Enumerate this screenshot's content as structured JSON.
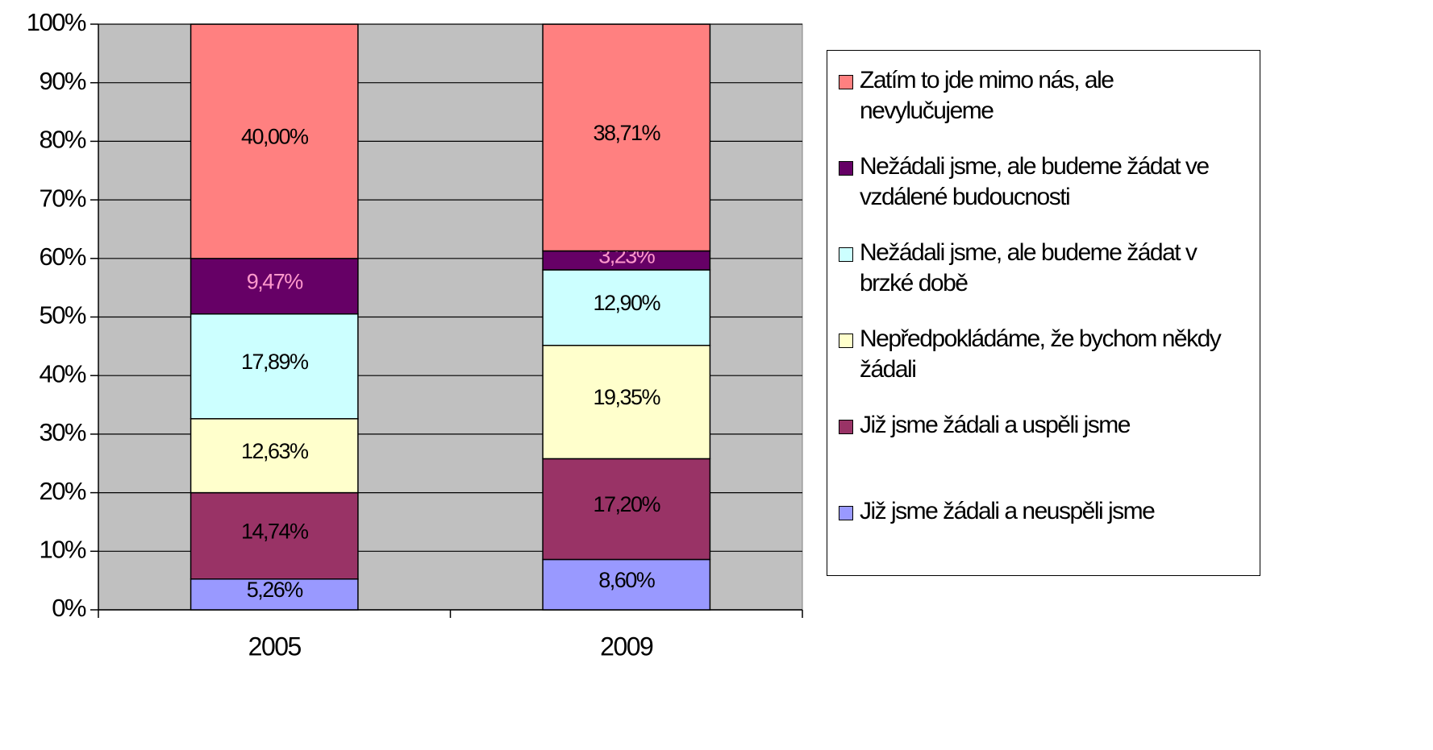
{
  "chart_data": {
    "type": "bar",
    "stacked": true,
    "grid": true,
    "legend": "right",
    "categories": [
      "2005",
      "2009"
    ],
    "ylim": [
      0,
      100
    ],
    "yticks": [
      {
        "value": 0,
        "label": "0%"
      },
      {
        "value": 10,
        "label": "10%"
      },
      {
        "value": 20,
        "label": "20%"
      },
      {
        "value": 30,
        "label": "30%"
      },
      {
        "value": 40,
        "label": "40%"
      },
      {
        "value": 50,
        "label": "50%"
      },
      {
        "value": 60,
        "label": "60%"
      },
      {
        "value": 70,
        "label": "70%"
      },
      {
        "value": 80,
        "label": "80%"
      },
      {
        "value": 90,
        "label": "90%"
      },
      {
        "value": 100,
        "label": "100%"
      }
    ],
    "series": [
      {
        "name": "Již jsme žádali a neuspěli jsme",
        "color": "#9999ff",
        "values": [
          5.26,
          8.6
        ],
        "value_labels": [
          "5,26%",
          "8,60%"
        ]
      },
      {
        "name": "Již jsme žádali a uspěli jsme",
        "color": "#993366",
        "values": [
          14.74,
          17.2
        ],
        "value_labels": [
          "14,74%",
          "17,20%"
        ]
      },
      {
        "name": "Nepředpokládáme, že bychom někdy žádali",
        "color": "#ffffcc",
        "values": [
          12.63,
          19.35
        ],
        "value_labels": [
          "12,63%",
          "19,35%"
        ]
      },
      {
        "name": "Nežádali jsme, ale budeme žádat v brzké době",
        "color": "#ccffff",
        "values": [
          17.89,
          12.9
        ],
        "value_labels": [
          "17,89%",
          "12,90%"
        ]
      },
      {
        "name": "Nežádali jsme, ale budeme žádat ve vzdálené budoucnosti",
        "color": "#660066",
        "values": [
          9.47,
          3.23
        ],
        "value_labels": [
          "9,47%",
          "3,23%"
        ]
      },
      {
        "name": "Zatím to jde mimo nás, ale nevylučujeme",
        "color": "#ff8080",
        "values": [
          40.0,
          38.71
        ],
        "value_labels": [
          "40,00%",
          "38,71%"
        ]
      }
    ]
  }
}
